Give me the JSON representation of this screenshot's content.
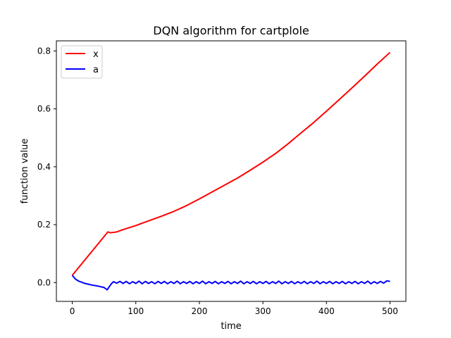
{
  "chart_data": {
    "type": "line",
    "title": "DQN algorithm for cartplole",
    "xlabel": "time",
    "ylabel": "function value",
    "xlim": [
      -25,
      525
    ],
    "ylim": [
      -0.065,
      0.835
    ],
    "xticks": [
      0,
      100,
      200,
      300,
      400,
      500
    ],
    "yticks": [
      0.0,
      0.2,
      0.4,
      0.6,
      0.8
    ],
    "xtick_labels": [
      "0",
      "100",
      "200",
      "300",
      "400",
      "500"
    ],
    "ytick_labels": [
      "0.0",
      "0.2",
      "0.4",
      "0.6",
      "0.8"
    ],
    "grid": false,
    "legend_position": "top-left",
    "series": [
      {
        "name": "x",
        "color": "#ff0000",
        "x": [
          0,
          56,
          60,
          70,
          80,
          90,
          100,
          120,
          140,
          160,
          180,
          200,
          220,
          240,
          260,
          280,
          300,
          320,
          340,
          360,
          380,
          400,
          420,
          440,
          460,
          480,
          500
        ],
        "y": [
          0.025,
          0.175,
          0.172,
          0.175,
          0.183,
          0.19,
          0.197,
          0.213,
          0.229,
          0.246,
          0.266,
          0.289,
          0.313,
          0.337,
          0.361,
          0.388,
          0.416,
          0.446,
          0.48,
          0.517,
          0.553,
          0.592,
          0.632,
          0.672,
          0.713,
          0.755,
          0.795
        ]
      },
      {
        "name": "a",
        "color": "#0000ff",
        "x": [
          0,
          5,
          10,
          20,
          30,
          40,
          50,
          55,
          58,
          62,
          65,
          70,
          75,
          80,
          85,
          90,
          95,
          100,
          105,
          110,
          115,
          120,
          125,
          130,
          135,
          140,
          145,
          150,
          155,
          160,
          165,
          170,
          175,
          180,
          185,
          190,
          195,
          200,
          205,
          210,
          215,
          220,
          225,
          230,
          235,
          240,
          245,
          250,
          255,
          260,
          265,
          270,
          275,
          280,
          285,
          290,
          295,
          300,
          305,
          310,
          315,
          320,
          325,
          330,
          335,
          340,
          345,
          350,
          355,
          360,
          365,
          370,
          375,
          380,
          385,
          390,
          395,
          400,
          405,
          410,
          415,
          420,
          425,
          430,
          435,
          440,
          445,
          450,
          455,
          460,
          465,
          470,
          475,
          480,
          485,
          490,
          495,
          500
        ],
        "y": [
          0.025,
          0.012,
          0.005,
          -0.003,
          -0.008,
          -0.012,
          -0.017,
          -0.025,
          -0.015,
          -0.003,
          0.003,
          -0.002,
          0.004,
          -0.003,
          0.004,
          -0.004,
          0.003,
          -0.003,
          0.005,
          -0.004,
          0.004,
          -0.003,
          0.003,
          -0.004,
          0.004,
          -0.003,
          0.004,
          -0.004,
          0.003,
          -0.003,
          0.005,
          -0.004,
          0.003,
          -0.003,
          0.004,
          -0.004,
          0.003,
          -0.003,
          0.005,
          -0.004,
          0.003,
          -0.003,
          0.004,
          -0.004,
          0.003,
          -0.003,
          0.004,
          -0.004,
          0.003,
          -0.003,
          0.005,
          -0.004,
          0.003,
          -0.003,
          0.004,
          -0.004,
          0.003,
          -0.003,
          0.004,
          -0.004,
          0.003,
          -0.003,
          0.005,
          -0.004,
          0.003,
          -0.003,
          0.004,
          -0.004,
          0.003,
          -0.003,
          0.004,
          -0.004,
          0.003,
          -0.003,
          0.005,
          -0.004,
          0.003,
          -0.003,
          0.004,
          -0.004,
          0.003,
          -0.003,
          0.004,
          -0.004,
          0.003,
          -0.003,
          0.004,
          -0.004,
          0.003,
          -0.003,
          0.005,
          -0.004,
          0.003,
          -0.003,
          0.004,
          -0.002,
          0.006,
          0.004
        ]
      }
    ]
  }
}
